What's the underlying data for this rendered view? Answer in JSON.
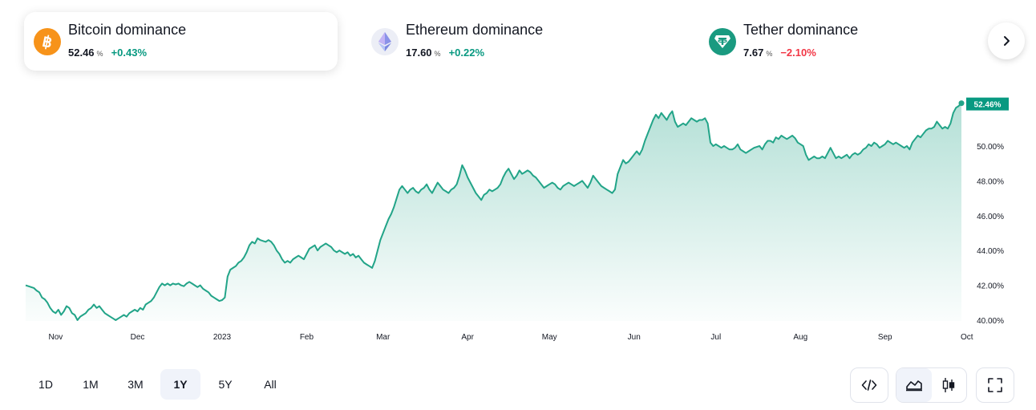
{
  "cards": [
    {
      "title": "Bitcoin dominance",
      "value": "52.46",
      "unit": "%",
      "change": "+0.43%",
      "direction": "up",
      "icon": "bitcoin-icon",
      "color": "#f7931a"
    },
    {
      "title": "Ethereum dominance",
      "value": "17.60",
      "unit": "%",
      "change": "+0.22%",
      "direction": "up",
      "icon": "ethereum-icon",
      "color": "#627eea"
    },
    {
      "title": "Tether dominance",
      "value": "7.67",
      "unit": "%",
      "change": "−2.10%",
      "direction": "down",
      "icon": "tether-icon",
      "color": "#26a17b"
    }
  ],
  "next_icon": "chevron-right-icon",
  "ranges": [
    "1D",
    "1M",
    "3M",
    "1Y",
    "5Y",
    "All"
  ],
  "selected_range": "1Y",
  "tools": [
    "embed-code-icon",
    "area-chart-icon",
    "candlestick-icon",
    "fullscreen-icon"
  ],
  "colors": {
    "line": "#22a488",
    "fill": "#22a488",
    "badge": "#089981",
    "up": "#089981",
    "down": "#f23645"
  },
  "chart_data": {
    "type": "area",
    "series_name": "Bitcoin dominance",
    "last_value_label": "52.46%",
    "ylim": [
      40,
      52.9
    ],
    "y_ticks": [
      40,
      42,
      44,
      46,
      48,
      50
    ],
    "y_tick_labels": [
      "40.00%",
      "42.00%",
      "44.00%",
      "46.00%",
      "48.00%",
      "50.00%"
    ],
    "x_tick_labels": [
      "Nov",
      "Dec",
      "2023",
      "Feb",
      "Mar",
      "Apr",
      "May",
      "Jun",
      "Jul",
      "Aug",
      "Sep",
      "Oct"
    ],
    "x_tick_index": [
      11,
      41,
      72,
      103,
      131,
      162,
      192,
      223,
      253,
      284,
      315,
      345
    ],
    "grid": false,
    "values": [
      42.0,
      41.95,
      41.9,
      41.85,
      41.7,
      41.6,
      41.3,
      41.2,
      41.0,
      40.7,
      40.5,
      40.4,
      40.6,
      40.3,
      40.5,
      40.8,
      40.7,
      40.4,
      40.3,
      40.0,
      40.2,
      40.3,
      40.4,
      40.6,
      40.7,
      40.9,
      40.7,
      40.8,
      40.6,
      40.4,
      40.3,
      40.2,
      40.1,
      40.0,
      40.1,
      40.2,
      40.3,
      40.2,
      40.4,
      40.5,
      40.6,
      40.5,
      40.7,
      40.6,
      40.9,
      41.0,
      41.1,
      41.3,
      41.6,
      41.9,
      42.1,
      42.0,
      42.1,
      42.0,
      42.1,
      42.05,
      42.1,
      42.0,
      41.95,
      42.1,
      42.2,
      42.1,
      42.0,
      41.9,
      42.0,
      41.8,
      41.7,
      41.6,
      41.4,
      41.3,
      41.2,
      41.1,
      41.15,
      41.3,
      42.5,
      42.9,
      43.0,
      43.1,
      43.3,
      43.4,
      43.6,
      43.9,
      44.3,
      44.5,
      44.4,
      44.7,
      44.6,
      44.55,
      44.5,
      44.6,
      44.5,
      44.3,
      44.0,
      43.8,
      43.5,
      43.3,
      43.4,
      43.3,
      43.5,
      43.6,
      43.7,
      43.6,
      43.5,
      43.8,
      44.1,
      44.2,
      44.3,
      44.0,
      44.2,
      44.3,
      44.4,
      44.3,
      44.2,
      44.0,
      43.9,
      44.0,
      43.9,
      43.8,
      43.9,
      43.7,
      43.8,
      43.6,
      43.7,
      43.5,
      43.3,
      43.2,
      43.1,
      43.0,
      43.4,
      44.0,
      44.6,
      45.0,
      45.4,
      45.8,
      46.1,
      46.5,
      47.0,
      47.5,
      47.7,
      47.5,
      47.3,
      47.5,
      47.6,
      47.4,
      47.3,
      47.5,
      47.6,
      47.8,
      47.5,
      47.3,
      47.6,
      47.9,
      47.7,
      47.5,
      47.4,
      47.3,
      47.5,
      47.6,
      47.8,
      48.3,
      48.9,
      48.6,
      48.2,
      47.9,
      47.6,
      47.3,
      47.1,
      46.9,
      47.2,
      47.3,
      47.5,
      47.4,
      47.5,
      47.6,
      47.8,
      48.2,
      48.5,
      48.7,
      48.4,
      48.1,
      48.3,
      48.6,
      48.4,
      48.5,
      48.6,
      48.5,
      48.3,
      48.2,
      48.0,
      47.8,
      47.6,
      47.7,
      47.8,
      47.9,
      47.8,
      47.6,
      47.5,
      47.7,
      47.8,
      47.9,
      47.8,
      47.7,
      47.8,
      47.9,
      48.0,
      47.8,
      47.6,
      47.9,
      48.3,
      48.1,
      47.9,
      47.7,
      47.6,
      47.5,
      47.4,
      47.3,
      47.5,
      48.4,
      48.8,
      49.2,
      49.0,
      49.1,
      49.3,
      49.5,
      49.7,
      49.5,
      49.8,
      50.3,
      50.7,
      51.1,
      51.5,
      51.8,
      51.6,
      51.9,
      51.7,
      51.5,
      51.8,
      52.0,
      51.4,
      51.1,
      51.2,
      51.3,
      51.2,
      51.4,
      51.6,
      51.5,
      51.4,
      51.5,
      51.5,
      51.6,
      51.3,
      50.2,
      50.0,
      50.1,
      50.0,
      49.9,
      50.0,
      49.9,
      49.8,
      49.8,
      49.9,
      50.1,
      49.8,
      49.7,
      49.6,
      49.7,
      49.8,
      49.9,
      49.95,
      50.0,
      49.8,
      50.1,
      50.3,
      50.3,
      50.2,
      50.5,
      50.4,
      50.6,
      50.5,
      50.4,
      50.5,
      50.6,
      50.45,
      50.2,
      50.1,
      50.0,
      49.5,
      49.2,
      49.3,
      49.4,
      49.3,
      49.3,
      49.4,
      49.3,
      49.6,
      49.9,
      49.6,
      49.3,
      49.4,
      49.3,
      49.4,
      49.5,
      49.3,
      49.5,
      49.6,
      49.5,
      49.6,
      49.8,
      49.9,
      50.1,
      50.0,
      50.2,
      50.1,
      49.9,
      50.0,
      50.1,
      50.3,
      50.2,
      50.1,
      50.2,
      50.1,
      50.0,
      49.9,
      50.0,
      49.8,
      50.2,
      50.4,
      50.6,
      50.5,
      50.7,
      50.9,
      51.0,
      51.0,
      51.1,
      51.4,
      51.2,
      51.0,
      51.1,
      51.0,
      51.3,
      51.9,
      52.2,
      52.3,
      52.46
    ]
  }
}
